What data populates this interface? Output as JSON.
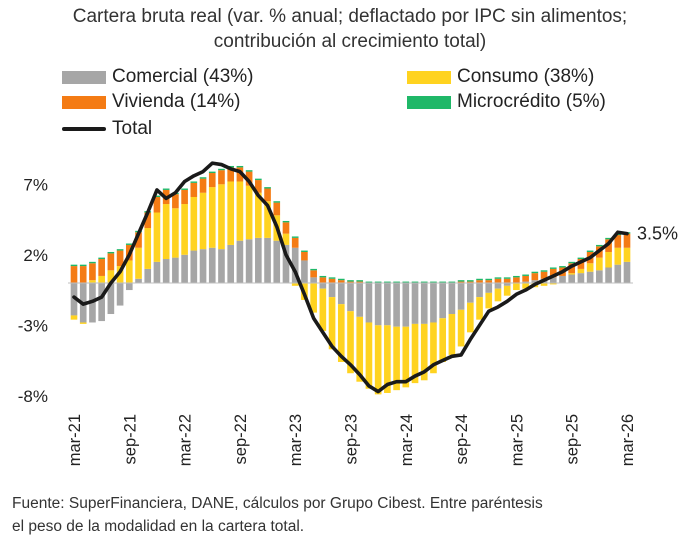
{
  "title_lines": [
    "Cartera bruta real (var. % anual; deflactado por IPC sin alimentos;",
    "contribución al crecimiento total)"
  ],
  "source_lines": [
    "Fuente: SuperFinanciera, DANE, cálculos por Grupo Cibest. Entre paréntesis",
    "el peso de la modalidad en la cartera total."
  ],
  "colors": {
    "comercial": "#a6a6a6",
    "consumo": "#ffd320",
    "vivienda": "#f47b14",
    "microcredito": "#1fb868",
    "total": "#1a1a1a"
  },
  "chart_data": {
    "type": "bar",
    "stacked": true,
    "title": "Cartera bruta real (var. % anual; deflactado por IPC sin alimentos; contribución al crecimiento total)",
    "legend_position": "top",
    "grid": false,
    "ylim": [
      -8.5,
      9.5
    ],
    "y_ticks": [
      7,
      2,
      -3,
      -8
    ],
    "y_tick_labels": [
      "7%",
      "2%",
      "-3%",
      "-8%"
    ],
    "x_tick_labels": [
      "mar-21",
      "sep-21",
      "mar-22",
      "sep-22",
      "mar-23",
      "sep-23",
      "mar-24",
      "sep-24",
      "mar-25",
      "sep-25",
      "mar-26"
    ],
    "x_tick_indices": [
      0,
      6,
      12,
      18,
      24,
      30,
      36,
      42,
      48,
      54,
      60
    ],
    "end_label": "3.5%",
    "series": [
      {
        "name": "Comercial (43%)",
        "key": "comercial",
        "values": [
          -2.3,
          -2.8,
          -2.8,
          -2.7,
          -2.2,
          -1.6,
          -0.5,
          0.3,
          1.0,
          1.5,
          1.7,
          1.8,
          2.0,
          2.3,
          2.4,
          2.5,
          2.4,
          2.7,
          3.0,
          3.1,
          3.2,
          3.2,
          3.0,
          2.7,
          2.5,
          1.6,
          0.4,
          -0.4,
          -1.0,
          -1.5,
          -2.0,
          -2.4,
          -2.8,
          -3.0,
          -3.0,
          -3.1,
          -3.1,
          -2.9,
          -2.9,
          -2.8,
          -2.5,
          -2.2,
          -1.9,
          -1.4,
          -1.0,
          -0.7,
          -0.4,
          -0.2,
          0.0,
          0.1,
          0.2,
          0.3,
          0.4,
          0.5,
          0.6,
          0.7,
          0.8,
          0.9,
          1.1,
          1.3,
          1.5
        ]
      },
      {
        "name": "Consumo (38%)",
        "key": "consumo",
        "values": [
          -0.3,
          -0.1,
          0.2,
          0.5,
          0.9,
          1.2,
          1.6,
          2.2,
          2.9,
          3.5,
          3.9,
          3.5,
          3.6,
          3.8,
          4.0,
          4.3,
          4.6,
          4.5,
          4.2,
          3.8,
          3.2,
          2.6,
          1.8,
          0.8,
          -0.2,
          -1.2,
          -2.1,
          -3.0,
          -3.7,
          -4.1,
          -4.4,
          -4.6,
          -4.7,
          -4.9,
          -4.8,
          -4.5,
          -4.3,
          -4.2,
          -4.0,
          -3.6,
          -3.1,
          -2.9,
          -2.6,
          -2.1,
          -1.6,
          -1.1,
          -0.9,
          -0.7,
          -0.5,
          -0.4,
          -0.3,
          -0.2,
          -0.1,
          0.0,
          0.1,
          0.3,
          0.6,
          0.9,
          1.1,
          1.2,
          1.0
        ]
      },
      {
        "name": "Vivienda (14%)",
        "key": "vivienda",
        "values": [
          1.2,
          1.2,
          1.2,
          1.2,
          1.2,
          1.1,
          1.1,
          1.1,
          1.1,
          1.1,
          1.0,
          1.0,
          1.0,
          1.0,
          1.0,
          1.0,
          1.0,
          1.0,
          1.0,
          1.0,
          0.9,
          0.9,
          0.9,
          0.8,
          0.7,
          0.6,
          0.5,
          0.4,
          0.3,
          0.2,
          0.1,
          0.1,
          0.0,
          0.0,
          0.0,
          0.0,
          0.0,
          0.0,
          0.0,
          0.0,
          0.0,
          0.0,
          0.1,
          0.1,
          0.2,
          0.2,
          0.3,
          0.3,
          0.4,
          0.4,
          0.5,
          0.5,
          0.6,
          0.6,
          0.7,
          0.7,
          0.8,
          0.8,
          0.9,
          0.9,
          1.0
        ]
      },
      {
        "name": "Microcrédito (5%)",
        "key": "microcredito",
        "values": [
          0.1,
          0.1,
          0.1,
          0.1,
          0.1,
          0.1,
          0.1,
          0.1,
          0.1,
          0.1,
          0.1,
          0.1,
          0.1,
          0.1,
          0.1,
          0.1,
          0.1,
          0.1,
          0.1,
          0.1,
          0.1,
          0.1,
          0.1,
          0.1,
          0.1,
          0.1,
          0.1,
          0.1,
          0.1,
          0.1,
          0.1,
          0.1,
          0.1,
          0.1,
          0.1,
          0.1,
          0.1,
          0.1,
          0.1,
          0.1,
          0.1,
          0.1,
          0.1,
          0.1,
          0.1,
          0.1,
          0.1,
          0.1,
          0.1,
          0.1,
          0.1,
          0.1,
          0.1,
          0.1,
          0.1,
          0.1,
          0.1,
          0.1,
          0.1,
          0.1,
          0.1
        ]
      },
      {
        "name": "Total",
        "key": "total",
        "type": "line",
        "values": [
          -1.0,
          -1.5,
          -1.3,
          -1.0,
          0.0,
          0.8,
          2.0,
          3.5,
          5.0,
          6.6,
          6.0,
          6.4,
          7.2,
          7.6,
          7.9,
          8.5,
          8.4,
          8.1,
          7.9,
          7.2,
          6.2,
          5.5,
          4.0,
          2.0,
          0.8,
          -0.8,
          -2.5,
          -3.5,
          -4.5,
          -5.2,
          -5.8,
          -6.5,
          -7.3,
          -7.7,
          -7.2,
          -7.0,
          -7.0,
          -6.6,
          -6.3,
          -5.8,
          -5.5,
          -5.2,
          -5.1,
          -4.0,
          -3.0,
          -2.0,
          -1.7,
          -1.3,
          -0.8,
          -0.5,
          -0.1,
          0.2,
          0.5,
          0.8,
          1.2,
          1.5,
          1.8,
          2.3,
          2.8,
          3.6,
          3.5
        ]
      }
    ]
  },
  "legend": [
    {
      "key": "comercial",
      "label": "Comercial (43%)"
    },
    {
      "key": "consumo",
      "label": "Consumo (38%)"
    },
    {
      "key": "vivienda",
      "label": "Vivienda (14%)"
    },
    {
      "key": "microcredito",
      "label": "Microcrédito (5%)"
    },
    {
      "key": "total",
      "label": "Total"
    }
  ]
}
